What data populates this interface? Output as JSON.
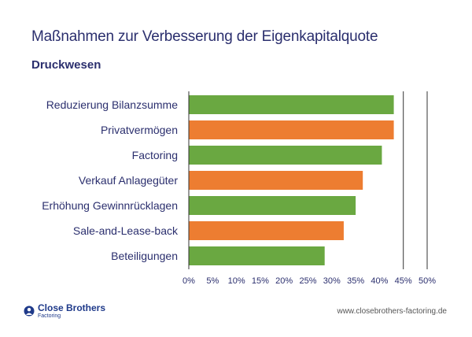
{
  "header": {
    "title": "Maßnahmen zur Verbesserung der Eigenkapitalquote",
    "subtitle": "Druckwesen"
  },
  "chart_data": {
    "type": "bar",
    "orientation": "horizontal",
    "categories": [
      "Reduzierung Bilanzsumme",
      "Privatvermögen",
      "Factoring",
      "Verkauf Anlagegüter",
      "Erhöhung Gewinnrücklagen",
      "Sale-and-Lease-back",
      "Beteiligungen"
    ],
    "values": [
      43,
      43,
      40.5,
      36.5,
      35,
      32.5,
      28.5
    ],
    "bar_colors": [
      "#6aa841",
      "#ed7d31",
      "#6aa841",
      "#ed7d31",
      "#6aa841",
      "#ed7d31",
      "#6aa841"
    ],
    "xlim": [
      0,
      50
    ],
    "x_ticks": [
      "0%",
      "5%",
      "10%",
      "15%",
      "20%",
      "25%",
      "30%",
      "35%",
      "40%",
      "45%",
      "50%"
    ],
    "grid": "vertical lines at 45% and 50%",
    "axis_color": "#333333",
    "label_color": "#2b2f6e"
  },
  "footer": {
    "logo_name": "Close Brothers",
    "logo_sub": "Factoring",
    "url": "www.closebrothers-factoring.de"
  }
}
